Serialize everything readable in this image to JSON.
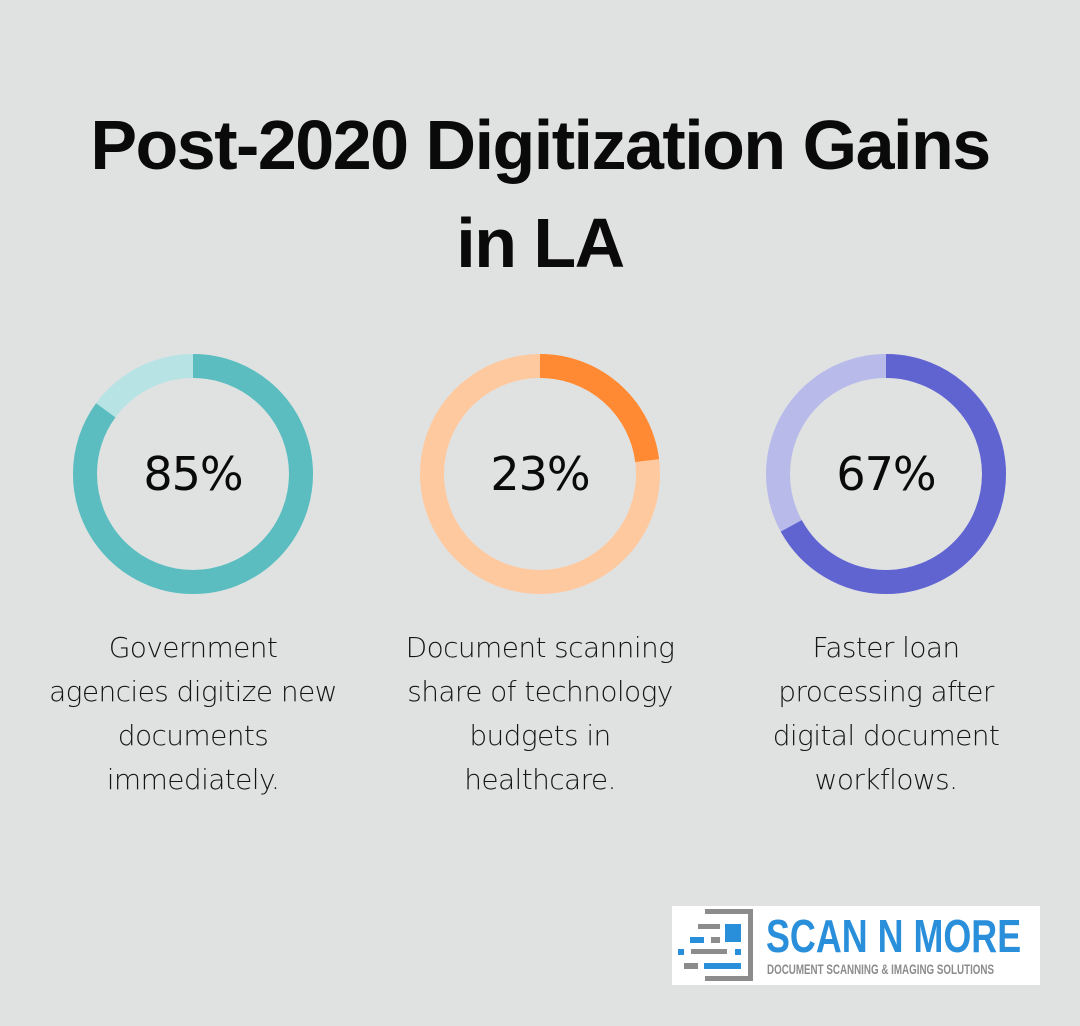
{
  "title": {
    "line1": "Post-2020 Digitization Gains",
    "line2": "in LA"
  },
  "stats": [
    {
      "value": "85%",
      "percent": 85,
      "color_fill": "#5bbdbf",
      "color_track": "#b8e3e5",
      "caption_lines": [
        "Government",
        "agencies digitize new",
        "documents",
        "immediately."
      ]
    },
    {
      "value": "23%",
      "percent": 23,
      "color_fill": "#ff8a33",
      "color_track": "#ffc9a0",
      "caption_lines": [
        "Document scanning",
        "share of technology",
        "budgets in",
        "healthcare."
      ]
    },
    {
      "value": "67%",
      "percent": 67,
      "color_fill": "#6064d0",
      "color_track": "#b8bbea",
      "caption_lines": [
        "Faster loan",
        "processing after",
        "digital document",
        "workflows."
      ]
    }
  ],
  "logo": {
    "name": "SCAN N MORE",
    "tagline": "DOCUMENT SCANNING & IMAGING SOLUTIONS",
    "color_primary": "#2a8fdb",
    "color_secondary": "#8c8c8c"
  },
  "chart_data": {
    "type": "pie",
    "subtype": "donut-progress",
    "title": "Post-2020 Digitization Gains in LA",
    "categories": [
      "Government agencies digitize new documents immediately.",
      "Document scanning share of technology budgets in healthcare.",
      "Faster loan processing after digital document workflows."
    ],
    "values": [
      85,
      23,
      67
    ],
    "unit": "%",
    "range": [
      0,
      100
    ],
    "colors": [
      "#5bbdbf",
      "#ff8a33",
      "#6064d0"
    ],
    "legend": "none",
    "grid": false
  }
}
